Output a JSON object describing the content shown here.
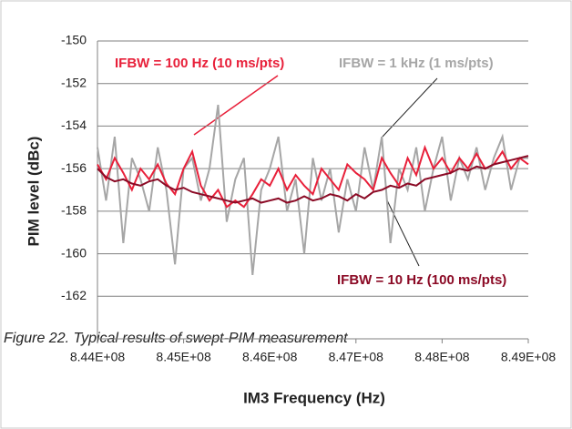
{
  "chart_data": {
    "type": "line",
    "caption": "Figure 22. Typical results of swept-PIM measurement",
    "xlabel": "IM3 Frequency (Hz)",
    "ylabel": "PIM level (dBc)",
    "annotations": [
      "IFBW = 100 Hz (10 ms/pts)",
      "IFBW = 1 kHz (1 ms/pts)",
      "IFBW = 10 Hz (100 ms/pts)"
    ],
    "xlim": [
      844000000,
      849000000
    ],
    "xticks": [
      {
        "value": 844000000,
        "label": "8.44E+08"
      },
      {
        "value": 845000000,
        "label": "8.45E+08"
      },
      {
        "value": 846000000,
        "label": "8.46E+08"
      },
      {
        "value": 847000000,
        "label": "8.47E+08"
      },
      {
        "value": 848000000,
        "label": "8.48E+08"
      },
      {
        "value": 849000000,
        "label": "8.49E+08"
      }
    ],
    "ylim": [
      -164,
      -150
    ],
    "yticks": [
      -150,
      -152,
      -154,
      -156,
      -158,
      -160,
      -162
    ],
    "grid": true,
    "x": [
      844000000,
      844100000,
      844200000,
      844300000,
      844400000,
      844500000,
      844600000,
      844700000,
      844800000,
      844900000,
      845000000,
      845100000,
      845200000,
      845300000,
      845400000,
      845500000,
      845600000,
      845700000,
      845800000,
      845900000,
      846000000,
      846100000,
      846200000,
      846300000,
      846400000,
      846500000,
      846600000,
      846700000,
      846800000,
      846900000,
      847000000,
      847100000,
      847200000,
      847300000,
      847400000,
      847500000,
      847600000,
      847700000,
      847800000,
      847900000,
      848000000,
      848100000,
      848200000,
      848300000,
      848400000,
      848500000,
      848600000,
      848700000,
      848800000,
      848900000,
      849000000
    ],
    "series": [
      {
        "color": "#a6a6a6",
        "values": [
          -155,
          -157.5,
          -154.5,
          -159.5,
          -155.5,
          -156.5,
          -158,
          -155,
          -157,
          -160.5,
          -156,
          -155.5,
          -157.5,
          -156,
          -153,
          -158.5,
          -156.5,
          -155.5,
          -161,
          -157,
          -156,
          -154.5,
          -158,
          -156.5,
          -160,
          -155.5,
          -157.5,
          -156,
          -159,
          -156.5,
          -158,
          -155,
          -157,
          -154.5,
          -159.5,
          -156,
          -157,
          -155,
          -158,
          -156,
          -154.5,
          -157.5,
          -155.5,
          -156.5,
          -155,
          -157,
          -155.5,
          -154.5,
          -157,
          -155.5,
          -155.5
        ]
      },
      {
        "color": "#e8203a",
        "values": [
          -155.8,
          -156.5,
          -155.5,
          -156.2,
          -157,
          -156,
          -156.5,
          -155.8,
          -156.7,
          -157.2,
          -156,
          -155.2,
          -156.8,
          -157.5,
          -157,
          -157.8,
          -157.5,
          -157.8,
          -157.2,
          -156.5,
          -156.8,
          -156,
          -157,
          -156.3,
          -156.8,
          -157.2,
          -156,
          -156.5,
          -157,
          -155.8,
          -156.2,
          -156.5,
          -157,
          -155.5,
          -156.2,
          -156.8,
          -155.5,
          -156.3,
          -155,
          -156,
          -155.5,
          -156.2,
          -155.5,
          -156,
          -155.3,
          -156,
          -155.8,
          -155.2,
          -156,
          -155.5,
          -155.8
        ]
      },
      {
        "color": "#8b0a25",
        "values": [
          -156,
          -156.4,
          -156.6,
          -156.5,
          -156.7,
          -156.8,
          -156.6,
          -156.5,
          -156.8,
          -157,
          -156.9,
          -157.1,
          -157.2,
          -157.3,
          -157.4,
          -157.5,
          -157.6,
          -157.5,
          -157.4,
          -157.6,
          -157.5,
          -157.4,
          -157.6,
          -157.5,
          -157.3,
          -157.5,
          -157.4,
          -157.2,
          -157.3,
          -157.5,
          -157.2,
          -157.4,
          -157.1,
          -157,
          -156.8,
          -156.9,
          -156.7,
          -156.8,
          -156.5,
          -156.4,
          -156.3,
          -156.2,
          -156,
          -156.1,
          -155.9,
          -156,
          -155.8,
          -155.7,
          -155.6,
          -155.5,
          -155.4
        ]
      }
    ]
  }
}
